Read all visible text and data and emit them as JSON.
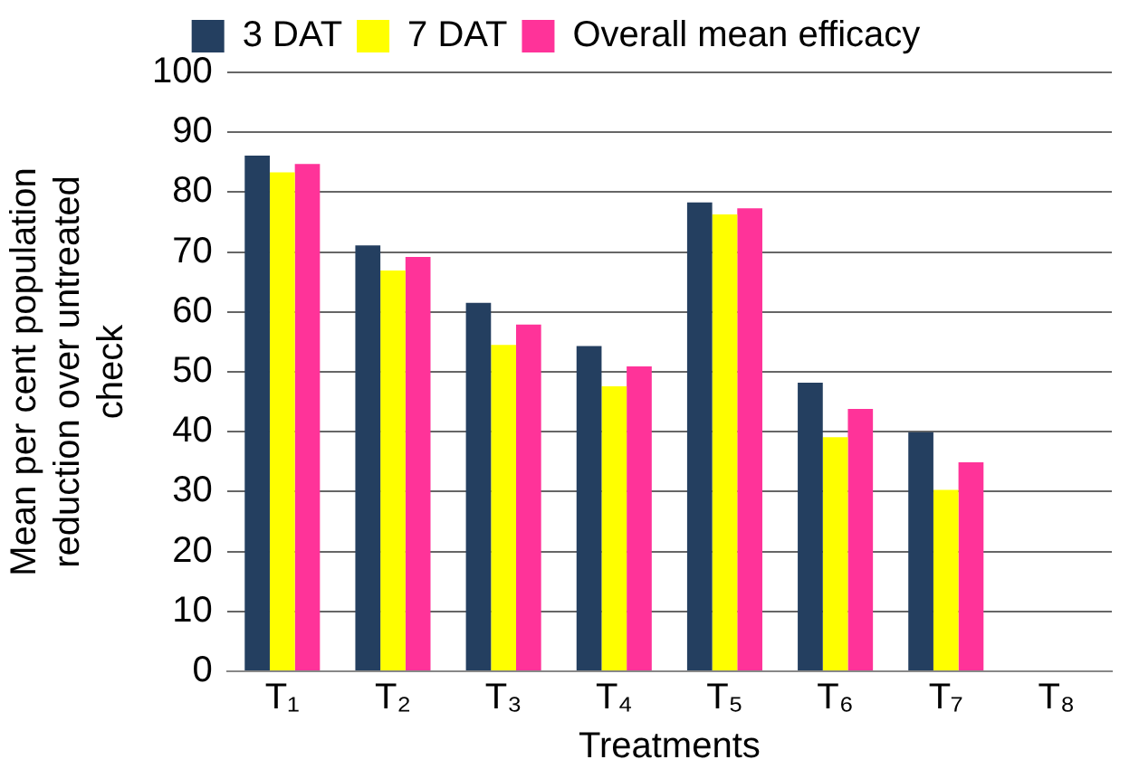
{
  "chart_data": {
    "type": "bar",
    "xlabel": "Treatments",
    "ylabel": "Mean per cent population reduction over untreated check",
    "categories": [
      "T₁",
      "T₂",
      "T₃",
      "T₄",
      "T₅",
      "T₆",
      "T₇",
      "T₈"
    ],
    "series": [
      {
        "name": "3 DAT",
        "color": "#243f60",
        "values": [
          86.1,
          71.1,
          61.5,
          54.3,
          78.3,
          48.2,
          39.9,
          0
        ]
      },
      {
        "name": "7 DAT",
        "color": "#ffff00",
        "values": [
          83.3,
          66.9,
          54.5,
          47.6,
          76.3,
          39.1,
          30.3,
          0
        ]
      },
      {
        "name": "Overall mean efficacy",
        "color": "#ff3399",
        "values": [
          84.7,
          69.2,
          57.9,
          50.9,
          77.3,
          43.8,
          34.9,
          0
        ]
      }
    ],
    "ylim": [
      0,
      100
    ],
    "yticks": [
      0,
      10,
      20,
      30,
      40,
      50,
      60,
      70,
      80,
      90,
      100
    ],
    "grid": "y",
    "legend": "top"
  }
}
